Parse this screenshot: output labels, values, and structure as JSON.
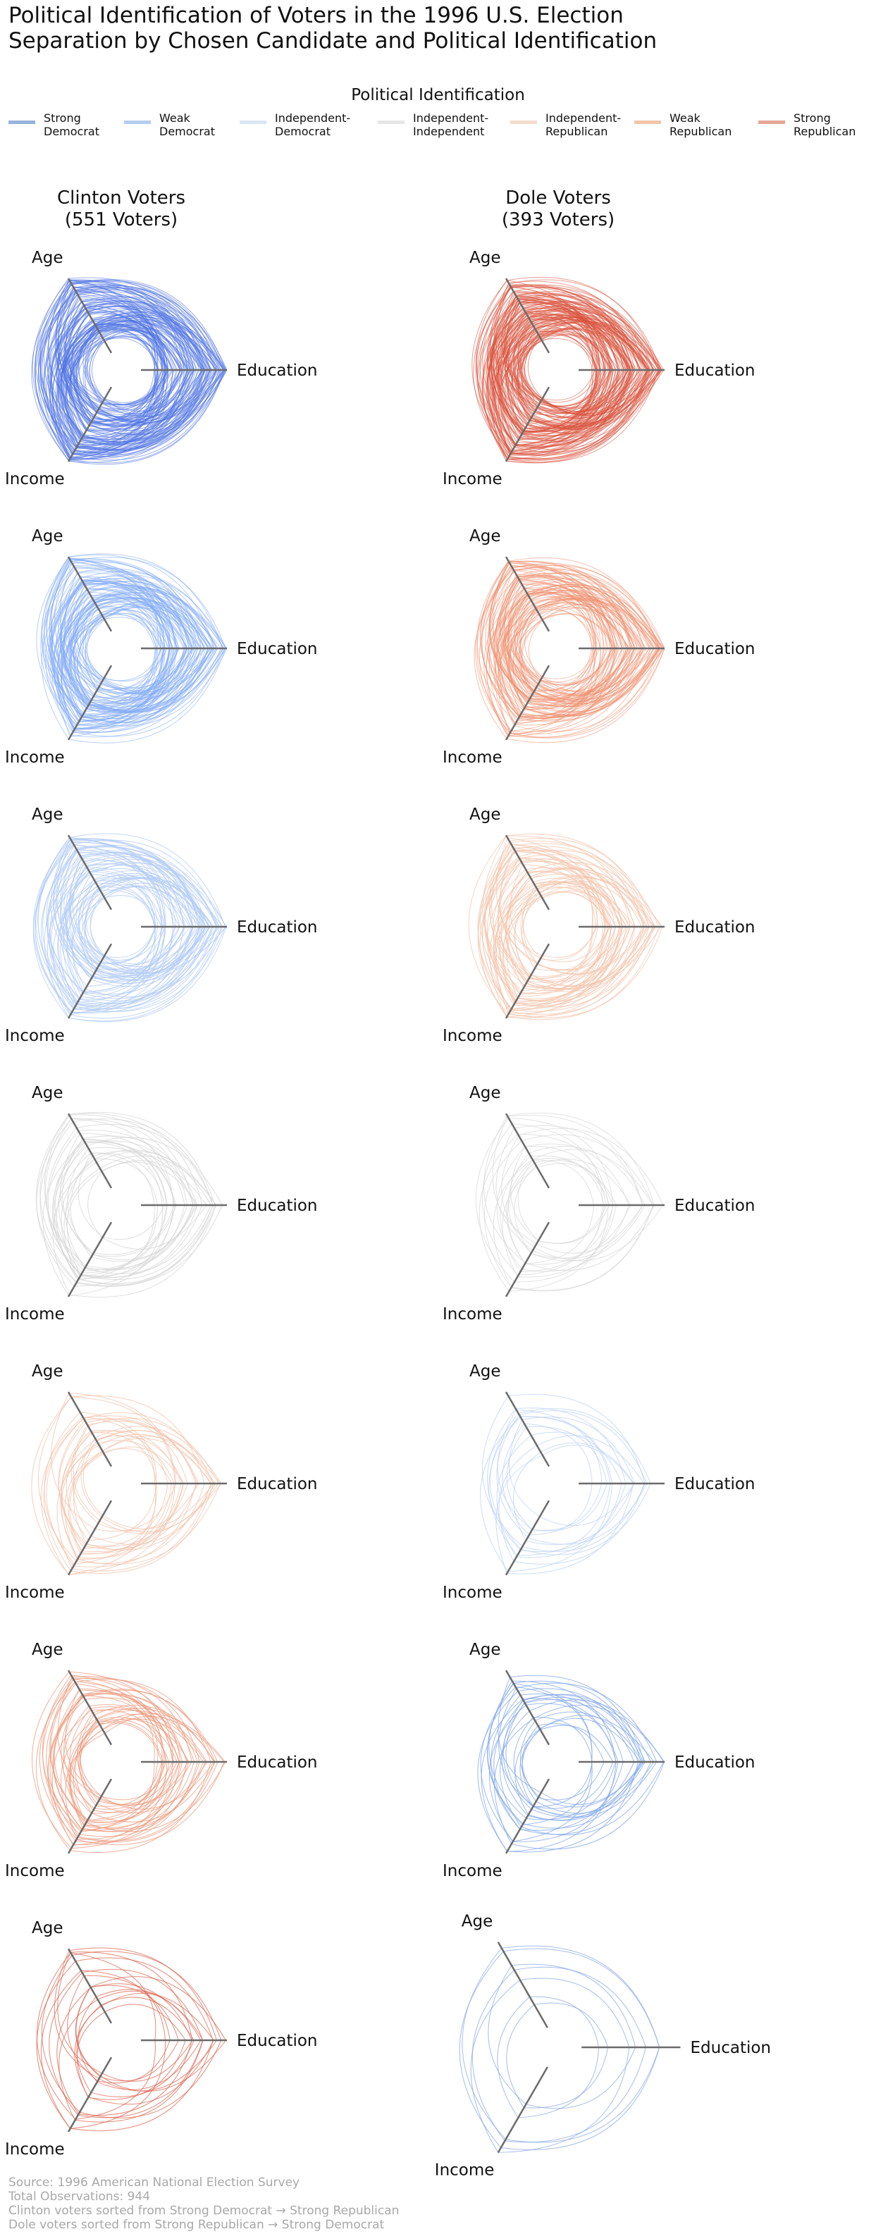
{
  "title": {
    "line1": "Political Identification of Voters in the 1996 U.S. Election",
    "line2": "Separation by Chosen Candidate and Political Identification"
  },
  "legend": {
    "title": "Political Identification",
    "items": [
      {
        "line1": "Strong",
        "line2": "Democrat",
        "color": "#98b3dc"
      },
      {
        "line1": "Weak",
        "line2": "Democrat",
        "color": "#b6cdee"
      },
      {
        "line1": "Independent-",
        "line2": "Democrat",
        "color": "#dbe5f4"
      },
      {
        "line1": "Independent-",
        "line2": "Independent",
        "color": "#e6e6e6"
      },
      {
        "line1": "Independent-",
        "line2": "Republican",
        "color": "#f5dccd"
      },
      {
        "line1": "Weak",
        "line2": "Republican",
        "color": "#f2c4aa"
      },
      {
        "line1": "Strong",
        "line2": "Republican",
        "color": "#e5a796"
      }
    ]
  },
  "columns": [
    {
      "line1": "Clinton Voters",
      "line2": "(551 Voters)"
    },
    {
      "line1": "Dole Voters",
      "line2": "(393 Voters)"
    }
  ],
  "axes": {
    "age": "Age",
    "education": "Education",
    "income": "Income"
  },
  "chart_data": {
    "type": "radial-parallel-coordinates",
    "axes": [
      "Age",
      "Education",
      "Income"
    ],
    "panels": [
      {
        "column": "Clinton Voters",
        "row": 1,
        "group": "Strong Democrat",
        "color": "#4f72e1",
        "lines": 120
      },
      {
        "column": "Clinton Voters",
        "row": 2,
        "group": "Weak Democrat",
        "color": "#80a9f8",
        "lines": 90
      },
      {
        "column": "Clinton Voters",
        "row": 3,
        "group": "Independent-Democrat",
        "color": "#b2cbf5",
        "lines": 60
      },
      {
        "column": "Clinton Voters",
        "row": 4,
        "group": "Independent-Independent",
        "color": "#d6d6d6",
        "lines": 26
      },
      {
        "column": "Clinton Voters",
        "row": 5,
        "group": "Independent-Republican",
        "color": "#f2c2aa",
        "lines": 24
      },
      {
        "column": "Clinton Voters",
        "row": 6,
        "group": "Weak Republican",
        "color": "#ec9a7e",
        "lines": 34
      },
      {
        "column": "Clinton Voters",
        "row": 7,
        "group": "Strong Republican",
        "color": "#dc6650",
        "lines": 16
      },
      {
        "column": "Dole Voters",
        "row": 1,
        "group": "Strong Republican",
        "color": "#d9523c",
        "lines": 120
      },
      {
        "column": "Dole Voters",
        "row": 2,
        "group": "Weak Republican",
        "color": "#ef8f6f",
        "lines": 85
      },
      {
        "column": "Dole Voters",
        "row": 3,
        "group": "Independent-Republican",
        "color": "#f3c5ad",
        "lines": 50
      },
      {
        "column": "Dole Voters",
        "row": 4,
        "group": "Independent-Independent",
        "color": "#d9d9d9",
        "lines": 18
      },
      {
        "column": "Dole Voters",
        "row": 5,
        "group": "Independent-Democrat",
        "color": "#bcd1f5",
        "lines": 14
      },
      {
        "column": "Dole Voters",
        "row": 6,
        "group": "Weak Democrat",
        "color": "#7fa5ea",
        "lines": 22
      },
      {
        "column": "Dole Voters",
        "row": 7,
        "group": "Strong Democrat",
        "color": "#8aa8e4",
        "lines": 7
      }
    ]
  },
  "footnote": {
    "source": "Source: 1996 American National Election Survey",
    "total": "Total Observations: 944",
    "clinton_sort": "Clinton voters sorted from Strong Democrat → Strong Republican",
    "dole_sort": "Dole voters sorted from Strong Republican → Strong Democrat"
  }
}
